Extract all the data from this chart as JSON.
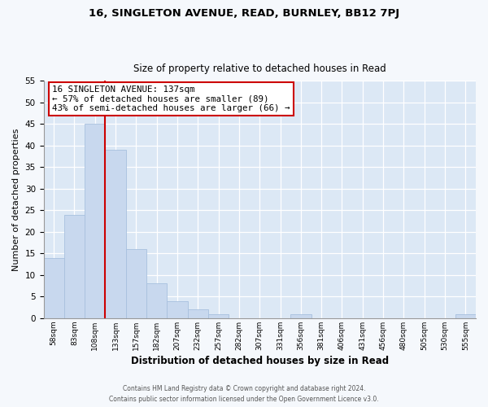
{
  "title1": "16, SINGLETON AVENUE, READ, BURNLEY, BB12 7PJ",
  "title2": "Size of property relative to detached houses in Read",
  "xlabel": "Distribution of detached houses by size in Read",
  "ylabel": "Number of detached properties",
  "bin_labels": [
    "58sqm",
    "83sqm",
    "108sqm",
    "133sqm",
    "157sqm",
    "182sqm",
    "207sqm",
    "232sqm",
    "257sqm",
    "282sqm",
    "307sqm",
    "331sqm",
    "356sqm",
    "381sqm",
    "406sqm",
    "431sqm",
    "456sqm",
    "480sqm",
    "505sqm",
    "530sqm",
    "555sqm"
  ],
  "bar_heights": [
    14,
    24,
    45,
    39,
    16,
    8,
    4,
    2,
    1,
    0,
    0,
    0,
    1,
    0,
    0,
    0,
    0,
    0,
    0,
    0,
    1
  ],
  "bar_color": "#c8d8ee",
  "bar_edge_color": "#a8c0de",
  "reference_line_x": 3,
  "annotation_title": "16 SINGLETON AVENUE: 137sqm",
  "annotation_line1": "← 57% of detached houses are smaller (89)",
  "annotation_line2": "43% of semi-detached houses are larger (66) →",
  "annotation_box_color": "#ffffff",
  "annotation_box_edge": "#cc0000",
  "ref_line_color": "#cc0000",
  "ylim": [
    0,
    55
  ],
  "yticks": [
    0,
    5,
    10,
    15,
    20,
    25,
    30,
    35,
    40,
    45,
    50,
    55
  ],
  "bg_color": "#dce8f5",
  "fig_bg_color": "#f5f8fc",
  "footer1": "Contains HM Land Registry data © Crown copyright and database right 2024.",
  "footer2": "Contains public sector information licensed under the Open Government Licence v3.0."
}
